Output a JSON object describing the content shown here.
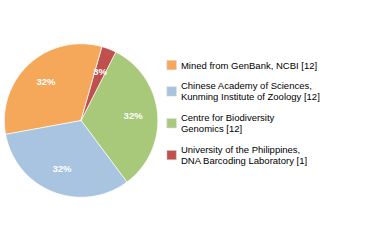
{
  "chart_data": {
    "type": "pie",
    "categories": [
      "Mined from GenBank, NCBI [12]",
      "Chinese Academy of Sciences,\nKunming Institute of Zoology [12]",
      "Centre for Biodiversity\nGenomics [12]",
      "University of the Philippines,\nDNA Barcoding Laboratory [1]"
    ],
    "values": [
      32,
      32,
      32,
      3
    ],
    "value_labels": [
      "32%",
      "32%",
      "32%",
      "3%"
    ],
    "colors": [
      "#F5A85A",
      "#A8C4E0",
      "#A8C87A",
      "#C0504D"
    ],
    "data_labels": true,
    "legend": "right"
  }
}
